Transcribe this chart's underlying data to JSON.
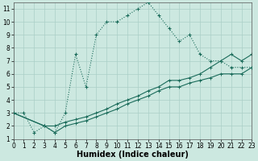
{
  "xlabel": "Humidex (Indice chaleur)",
  "xlim": [
    0,
    23
  ],
  "ylim": [
    1,
    11.5
  ],
  "xticks": [
    0,
    1,
    2,
    3,
    4,
    5,
    6,
    7,
    8,
    9,
    10,
    11,
    12,
    13,
    14,
    15,
    16,
    17,
    18,
    19,
    20,
    21,
    22,
    23
  ],
  "yticks": [
    1,
    2,
    3,
    4,
    5,
    6,
    7,
    8,
    9,
    10,
    11
  ],
  "bg_color": "#cce8e0",
  "grid_color": "#aacfc7",
  "line_color": "#1a6b5a",
  "series1_x": [
    0,
    1,
    2,
    3,
    4,
    5,
    6,
    7,
    8,
    9,
    10,
    11,
    12,
    13,
    14,
    15,
    16,
    17,
    18,
    19,
    20,
    21,
    22,
    23
  ],
  "series1_y": [
    3,
    3,
    1.5,
    2,
    1.5,
    3,
    7.5,
    5.0,
    9.0,
    10,
    10,
    10.5,
    11.0,
    11.5,
    10.5,
    9.5,
    8.5,
    9.0,
    7.5,
    7.0,
    7.0,
    6.5,
    6.5,
    6.5
  ],
  "series2_x": [
    0,
    3,
    4,
    5,
    6,
    7,
    8,
    9,
    10,
    11,
    12,
    13,
    14,
    15,
    16,
    17,
    18,
    19,
    20,
    21,
    22,
    23
  ],
  "series2_y": [
    3,
    2,
    2,
    2.3,
    2.5,
    2.7,
    3.0,
    3.3,
    3.7,
    4.0,
    4.3,
    4.7,
    5.0,
    5.5,
    5.5,
    5.7,
    6.0,
    6.5,
    7.0,
    7.5,
    7.0,
    7.5
  ],
  "series3_x": [
    0,
    3,
    4,
    5,
    6,
    7,
    8,
    9,
    10,
    11,
    12,
    13,
    14,
    15,
    16,
    17,
    18,
    19,
    20,
    21,
    22,
    23
  ],
  "series3_y": [
    3,
    2,
    1.5,
    2,
    2.2,
    2.4,
    2.7,
    3.0,
    3.3,
    3.7,
    4.0,
    4.3,
    4.7,
    5.0,
    5.0,
    5.3,
    5.5,
    5.7,
    6.0,
    6.0,
    6.0,
    6.5
  ],
  "marker_size": 2.5,
  "linewidth": 0.8,
  "tick_fontsize": 5.5,
  "label_fontsize": 7
}
